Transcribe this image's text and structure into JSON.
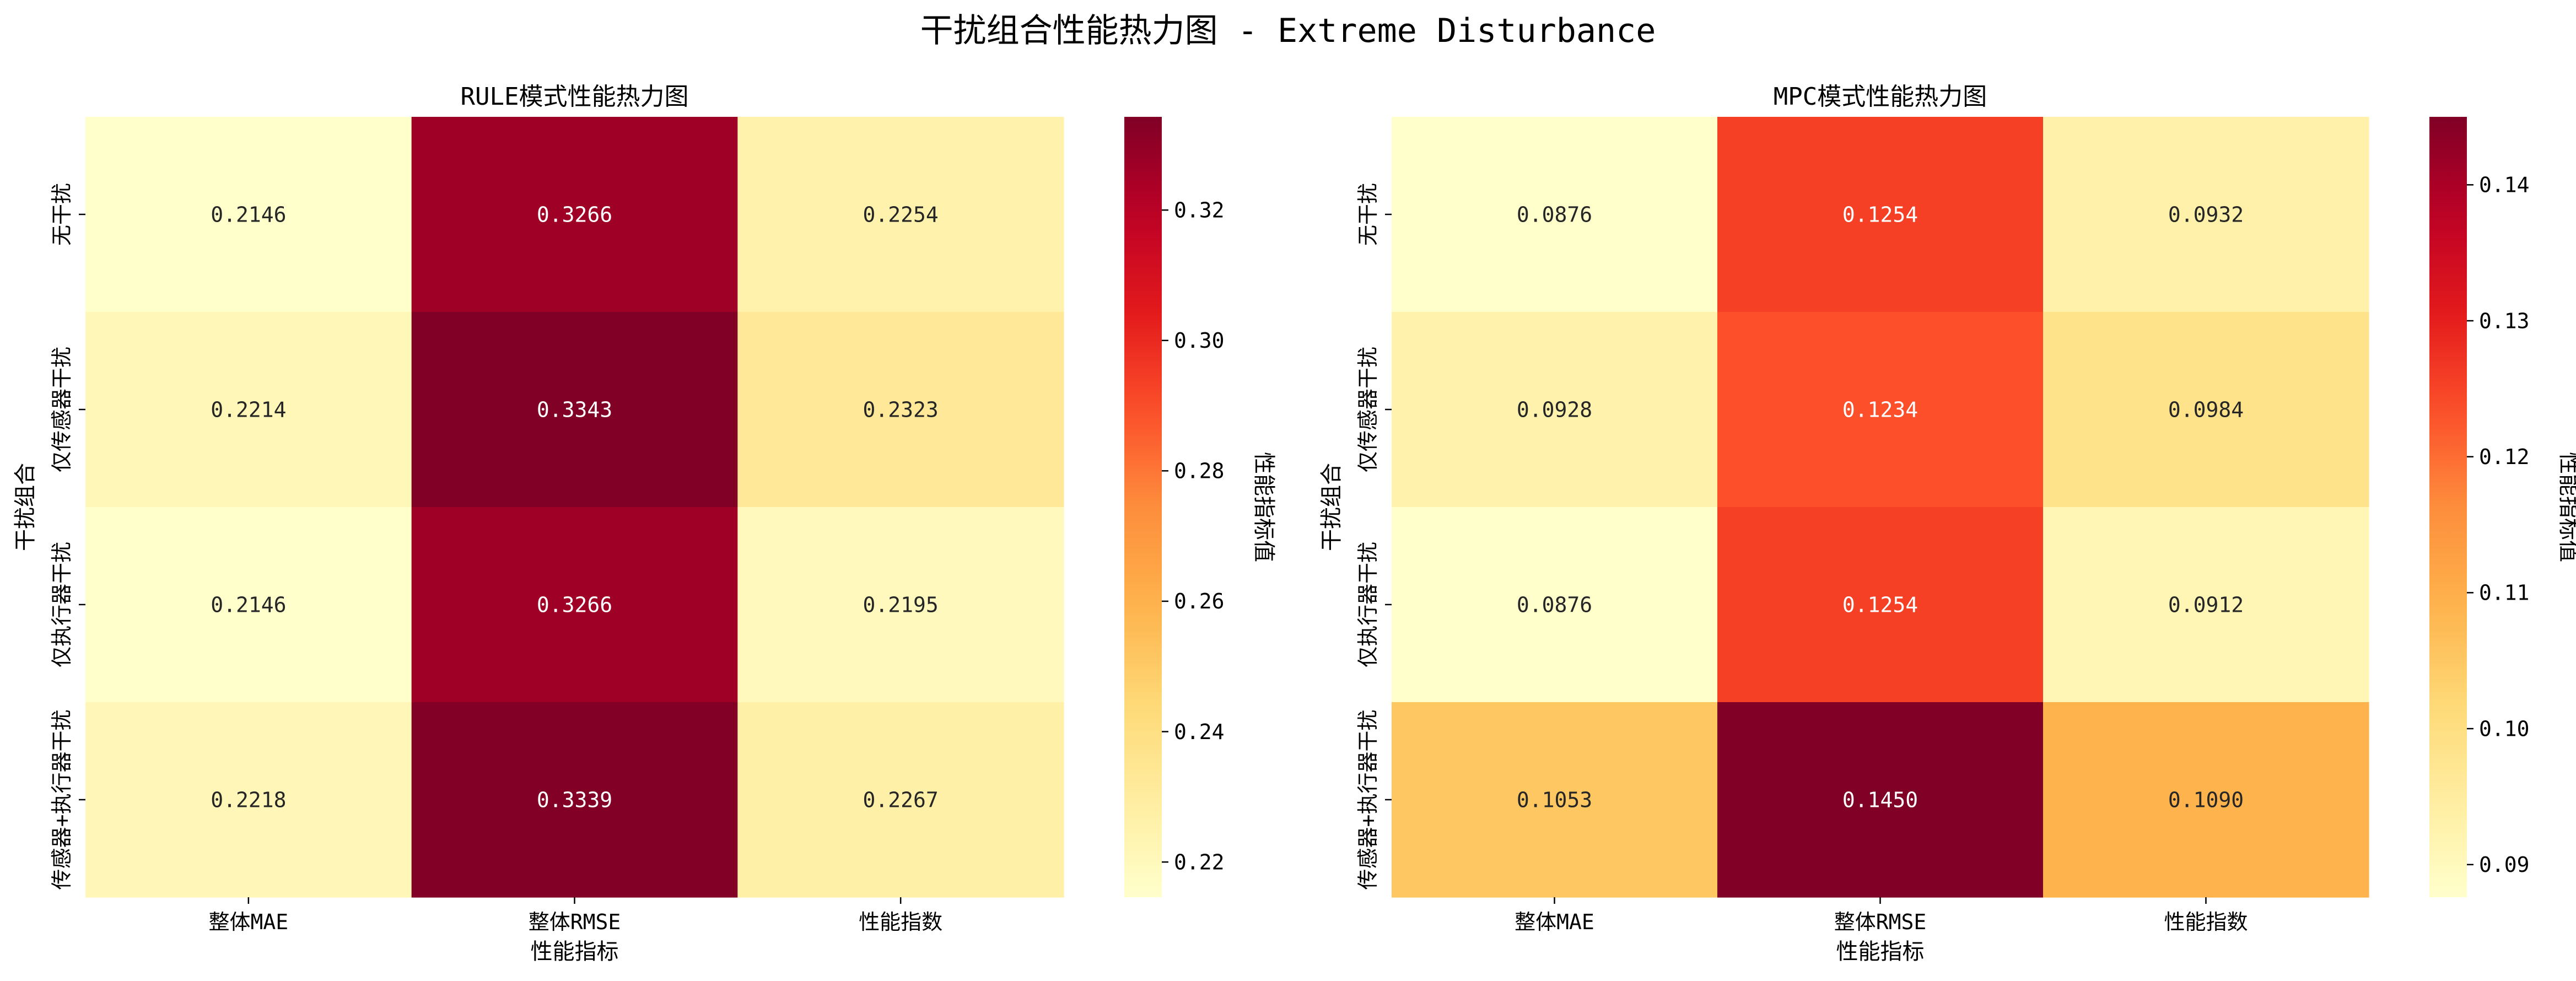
{
  "figure": {
    "title": "干扰组合性能热力图 - Extreme Disturbance"
  },
  "chart_data": [
    {
      "type": "heatmap",
      "title": "RULE模式性能热力图",
      "xlabel": "性能指标",
      "ylabel": "干扰组合",
      "colorbar_label": "性能指标值",
      "colormap": "YlOrRd",
      "columns": [
        "整体MAE",
        "整体RMSE",
        "性能指数"
      ],
      "rows": [
        "无干扰",
        "仅传感器干扰",
        "仅执行器干扰",
        "传感器+执行器干扰"
      ],
      "values": [
        [
          0.2146,
          0.3266,
          0.2254
        ],
        [
          0.2214,
          0.3343,
          0.2323
        ],
        [
          0.2146,
          0.3266,
          0.2195
        ],
        [
          0.2218,
          0.3339,
          0.2267
        ]
      ],
      "value_labels": [
        [
          "0.2146",
          "0.3266",
          "0.2254"
        ],
        [
          "0.2214",
          "0.3343",
          "0.2323"
        ],
        [
          "0.2146",
          "0.3266",
          "0.2195"
        ],
        [
          "0.2218",
          "0.3339",
          "0.2267"
        ]
      ],
      "vmin": 0.2146,
      "vmax": 0.3343,
      "colorbar_ticks": [
        0.22,
        0.24,
        0.26,
        0.28,
        0.3,
        0.32
      ],
      "colorbar_tick_labels": [
        "0.22",
        "0.24",
        "0.26",
        "0.28",
        "0.30",
        "0.32"
      ]
    },
    {
      "type": "heatmap",
      "title": "MPC模式性能热力图",
      "xlabel": "性能指标",
      "ylabel": "干扰组合",
      "colorbar_label": "性能指标值",
      "colormap": "YlOrRd",
      "columns": [
        "整体MAE",
        "整体RMSE",
        "性能指数"
      ],
      "rows": [
        "无干扰",
        "仅传感器干扰",
        "仅执行器干扰",
        "传感器+执行器干扰"
      ],
      "values": [
        [
          0.0876,
          0.1254,
          0.0932
        ],
        [
          0.0928,
          0.1234,
          0.0984
        ],
        [
          0.0876,
          0.1254,
          0.0912
        ],
        [
          0.1053,
          0.145,
          0.109
        ]
      ],
      "value_labels": [
        [
          "0.0876",
          "0.1254",
          "0.0932"
        ],
        [
          "0.0928",
          "0.1234",
          "0.0984"
        ],
        [
          "0.0876",
          "0.1254",
          "0.0912"
        ],
        [
          "0.1053",
          "0.1450",
          "0.1090"
        ]
      ],
      "vmin": 0.0876,
      "vmax": 0.145,
      "colorbar_ticks": [
        0.09,
        0.1,
        0.11,
        0.12,
        0.13,
        0.14
      ],
      "colorbar_tick_labels": [
        "0.09",
        "0.10",
        "0.11",
        "0.12",
        "0.13",
        "0.14"
      ]
    }
  ]
}
